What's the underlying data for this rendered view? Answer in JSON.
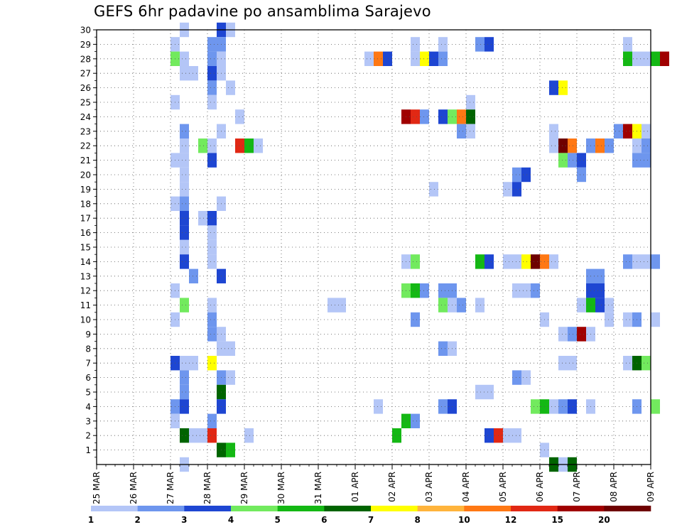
{
  "title": "GEFS 6hr padavine po ansamblima Sarajevo",
  "chart_data": {
    "type": "heatmap",
    "x_tick_labels": [
      "25 MAR",
      "26 MAR",
      "27 MAR",
      "28 MAR",
      "29 MAR",
      "30 MAR",
      "31 MAR",
      "01 APR",
      "02 APR",
      "03 APR",
      "04 APR",
      "05 APR",
      "06 APR",
      "07 APR",
      "08 APR",
      "09 APR"
    ],
    "y_tick_labels": [
      "1",
      "2",
      "3",
      "4",
      "5",
      "6",
      "7",
      "8",
      "9",
      "10",
      "11",
      "12",
      "13",
      "14",
      "15",
      "16",
      "17",
      "18",
      "19",
      "20",
      "21",
      "22",
      "23",
      "24",
      "25",
      "26",
      "27",
      "28",
      "29",
      "30"
    ],
    "x_range_days": [
      0,
      15
    ],
    "y_range": [
      0,
      30
    ],
    "grid": true,
    "legend": {
      "placement": "bottom",
      "labels": [
        "1",
        "2",
        "3",
        "4",
        "5",
        "6",
        "7",
        "8",
        "10",
        "12",
        "15",
        "20"
      ],
      "colors": [
        "#b4c6f7",
        "#6e96ee",
        "#1e46d2",
        "#72ea5e",
        "#14b814",
        "#006400",
        "#ffff00",
        "#ffb43c",
        "#ff7814",
        "#e12814",
        "#a00000",
        "#6e0000"
      ]
    },
    "cells": [
      [
        2.375,
        30,
        1
      ],
      [
        3.375,
        30,
        3
      ],
      [
        3.625,
        30,
        1
      ],
      [
        2.125,
        29,
        1
      ],
      [
        3.125,
        29,
        2
      ],
      [
        3.375,
        29,
        2
      ],
      [
        8.625,
        29,
        1
      ],
      [
        9.375,
        29,
        1
      ],
      [
        10.375,
        29,
        2
      ],
      [
        10.625,
        29,
        3
      ],
      [
        14.375,
        29,
        1
      ],
      [
        2.125,
        28,
        4
      ],
      [
        2.375,
        28,
        1
      ],
      [
        3.125,
        28,
        2
      ],
      [
        3.375,
        28,
        1
      ],
      [
        7.375,
        28,
        1
      ],
      [
        7.625,
        28,
        9
      ],
      [
        7.875,
        28,
        3
      ],
      [
        8.625,
        28,
        1
      ],
      [
        8.875,
        28,
        7
      ],
      [
        9.125,
        28,
        3
      ],
      [
        9.375,
        28,
        2
      ],
      [
        14.375,
        28,
        5
      ],
      [
        14.625,
        28,
        1
      ],
      [
        14.875,
        28,
        1
      ],
      [
        15.125,
        28,
        5
      ],
      [
        15.375,
        28,
        11
      ],
      [
        2.375,
        27,
        1
      ],
      [
        2.625,
        27,
        1
      ],
      [
        3.125,
        27,
        3
      ],
      [
        3.375,
        27,
        1
      ],
      [
        3.125,
        26,
        2
      ],
      [
        3.625,
        26,
        1
      ],
      [
        12.375,
        26,
        3
      ],
      [
        12.625,
        26,
        7
      ],
      [
        2.125,
        25,
        1
      ],
      [
        3.125,
        25,
        1
      ],
      [
        10.125,
        25,
        1
      ],
      [
        8.375,
        24,
        11
      ],
      [
        8.625,
        24,
        10
      ],
      [
        8.875,
        24,
        2
      ],
      [
        9.375,
        24,
        3
      ],
      [
        9.625,
        24,
        4
      ],
      [
        9.875,
        24,
        9
      ],
      [
        10.125,
        24,
        6
      ],
      [
        3.875,
        24,
        1
      ],
      [
        2.375,
        23,
        2
      ],
      [
        3.375,
        23,
        1
      ],
      [
        9.875,
        23,
        2
      ],
      [
        10.125,
        23,
        1
      ],
      [
        12.375,
        23,
        1
      ],
      [
        14.125,
        23,
        2
      ],
      [
        14.375,
        23,
        11
      ],
      [
        14.625,
        23,
        7
      ],
      [
        14.875,
        23,
        1
      ],
      [
        2.375,
        22,
        1
      ],
      [
        2.875,
        22,
        4
      ],
      [
        3.125,
        22,
        1
      ],
      [
        3.875,
        22,
        10
      ],
      [
        4.125,
        22,
        5
      ],
      [
        4.375,
        22,
        1
      ],
      [
        12.375,
        22,
        1
      ],
      [
        12.625,
        22,
        12
      ],
      [
        12.875,
        22,
        9
      ],
      [
        13.375,
        22,
        2
      ],
      [
        13.625,
        22,
        9
      ],
      [
        13.875,
        22,
        2
      ],
      [
        14.625,
        22,
        1
      ],
      [
        14.875,
        22,
        2
      ],
      [
        2.125,
        21,
        1
      ],
      [
        2.375,
        21,
        1
      ],
      [
        3.125,
        21,
        3
      ],
      [
        12.625,
        21,
        4
      ],
      [
        12.875,
        21,
        2
      ],
      [
        13.125,
        21,
        3
      ],
      [
        14.625,
        21,
        2
      ],
      [
        14.875,
        21,
        2
      ],
      [
        2.375,
        20,
        1
      ],
      [
        11.375,
        20,
        2
      ],
      [
        11.625,
        20,
        3
      ],
      [
        13.125,
        20,
        2
      ],
      [
        2.375,
        19,
        1
      ],
      [
        9.125,
        19,
        1
      ],
      [
        11.125,
        19,
        1
      ],
      [
        11.375,
        19,
        3
      ],
      [
        2.125,
        18,
        1
      ],
      [
        2.375,
        18,
        2
      ],
      [
        3.375,
        18,
        1
      ],
      [
        2.375,
        17,
        3
      ],
      [
        2.875,
        17,
        1
      ],
      [
        3.125,
        17,
        3
      ],
      [
        2.375,
        16,
        3
      ],
      [
        3.125,
        16,
        1
      ],
      [
        2.375,
        15,
        1
      ],
      [
        3.125,
        15,
        1
      ],
      [
        2.375,
        14,
        3
      ],
      [
        3.125,
        14,
        1
      ],
      [
        8.375,
        14,
        1
      ],
      [
        8.625,
        14,
        4
      ],
      [
        10.375,
        14,
        5
      ],
      [
        10.625,
        14,
        3
      ],
      [
        11.125,
        14,
        1
      ],
      [
        11.375,
        14,
        1
      ],
      [
        11.625,
        14,
        7
      ],
      [
        11.875,
        14,
        12
      ],
      [
        12.125,
        14,
        9
      ],
      [
        12.375,
        14,
        1
      ],
      [
        14.375,
        14,
        2
      ],
      [
        14.625,
        14,
        1
      ],
      [
        14.875,
        14,
        1
      ],
      [
        15.125,
        14,
        2
      ],
      [
        2.625,
        13,
        2
      ],
      [
        3.375,
        13,
        3
      ],
      [
        13.375,
        13,
        2
      ],
      [
        13.625,
        13,
        2
      ],
      [
        2.125,
        12,
        1
      ],
      [
        8.375,
        12,
        4
      ],
      [
        8.625,
        12,
        5
      ],
      [
        8.875,
        12,
        2
      ],
      [
        9.375,
        12,
        2
      ],
      [
        9.625,
        12,
        2
      ],
      [
        11.375,
        12,
        1
      ],
      [
        11.625,
        12,
        1
      ],
      [
        11.875,
        12,
        2
      ],
      [
        13.375,
        12,
        3
      ],
      [
        13.625,
        12,
        3
      ],
      [
        2.375,
        11,
        4
      ],
      [
        3.125,
        11,
        1
      ],
      [
        6.375,
        11,
        1
      ],
      [
        6.625,
        11,
        1
      ],
      [
        9.375,
        11,
        4
      ],
      [
        9.625,
        11,
        1
      ],
      [
        9.875,
        11,
        2
      ],
      [
        10.375,
        11,
        1
      ],
      [
        13.125,
        11,
        1
      ],
      [
        13.375,
        11,
        5
      ],
      [
        13.625,
        11,
        3
      ],
      [
        13.875,
        11,
        1
      ],
      [
        2.125,
        10,
        1
      ],
      [
        3.125,
        10,
        2
      ],
      [
        8.625,
        10,
        2
      ],
      [
        12.125,
        10,
        1
      ],
      [
        13.875,
        10,
        1
      ],
      [
        14.375,
        10,
        1
      ],
      [
        14.625,
        10,
        2
      ],
      [
        15.125,
        10,
        1
      ],
      [
        3.125,
        9,
        2
      ],
      [
        3.375,
        9,
        1
      ],
      [
        12.625,
        9,
        1
      ],
      [
        12.875,
        9,
        2
      ],
      [
        13.125,
        9,
        11
      ],
      [
        13.375,
        9,
        1
      ],
      [
        3.375,
        8,
        1
      ],
      [
        3.625,
        8,
        1
      ],
      [
        9.375,
        8,
        2
      ],
      [
        9.625,
        8,
        1
      ],
      [
        2.125,
        7,
        3
      ],
      [
        2.375,
        7,
        1
      ],
      [
        2.625,
        7,
        1
      ],
      [
        3.125,
        7,
        7
      ],
      [
        12.625,
        7,
        1
      ],
      [
        12.875,
        7,
        1
      ],
      [
        14.625,
        7,
        6
      ],
      [
        14.875,
        7,
        4
      ],
      [
        14.375,
        7,
        1
      ],
      [
        2.375,
        6,
        2
      ],
      [
        3.375,
        6,
        2
      ],
      [
        3.625,
        6,
        1
      ],
      [
        11.375,
        6,
        2
      ],
      [
        11.625,
        6,
        1
      ],
      [
        2.375,
        5,
        2
      ],
      [
        3.375,
        5,
        6
      ],
      [
        10.375,
        5,
        1
      ],
      [
        10.625,
        5,
        1
      ],
      [
        2.125,
        4,
        2
      ],
      [
        2.375,
        4,
        3
      ],
      [
        3.375,
        4,
        3
      ],
      [
        7.625,
        4,
        1
      ],
      [
        9.375,
        4,
        2
      ],
      [
        9.625,
        4,
        3
      ],
      [
        11.875,
        4,
        4
      ],
      [
        12.125,
        4,
        5
      ],
      [
        12.375,
        4,
        1
      ],
      [
        12.625,
        4,
        2
      ],
      [
        12.875,
        4,
        3
      ],
      [
        13.375,
        4,
        1
      ],
      [
        14.625,
        4,
        2
      ],
      [
        15.125,
        4,
        4
      ],
      [
        2.125,
        3,
        1
      ],
      [
        3.125,
        3,
        2
      ],
      [
        8.375,
        3,
        5
      ],
      [
        8.625,
        3,
        2
      ],
      [
        2.375,
        2,
        6
      ],
      [
        2.625,
        2,
        1
      ],
      [
        2.875,
        2,
        1
      ],
      [
        3.125,
        2,
        10
      ],
      [
        4.125,
        2,
        1
      ],
      [
        8.125,
        2,
        5
      ],
      [
        10.625,
        2,
        3
      ],
      [
        10.875,
        2,
        10
      ],
      [
        11.125,
        2,
        1
      ],
      [
        11.375,
        2,
        1
      ],
      [
        3.375,
        1,
        6
      ],
      [
        3.625,
        1,
        5
      ],
      [
        12.125,
        1,
        1
      ],
      [
        2.375,
        0,
        1
      ],
      [
        12.375,
        0,
        6
      ],
      [
        12.625,
        0,
        1
      ],
      [
        12.875,
        0,
        6
      ]
    ]
  }
}
